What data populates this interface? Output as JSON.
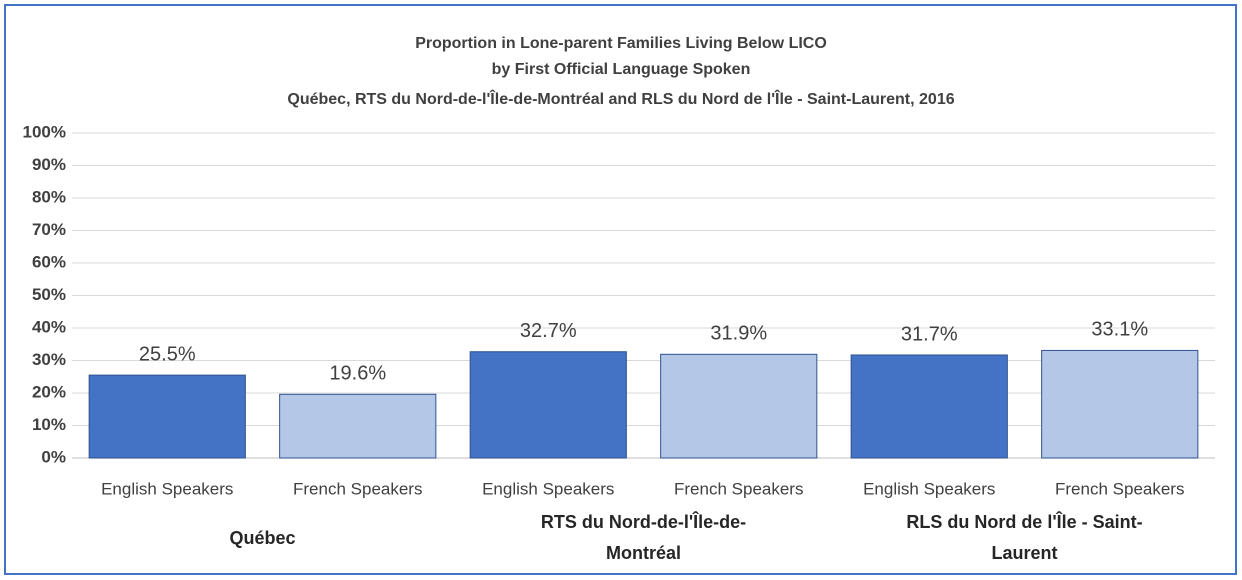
{
  "chart_data": {
    "type": "bar",
    "title": [
      "Proportion in Lone-parent Families Living Below LICO",
      "by First Official Language Spoken",
      "Québec, RTS du Nord-de-l'Île-de-Montréal and RLS du Nord de l'Île - Saint-Laurent, 2016"
    ],
    "categories": [
      "English Speakers",
      "French Speakers",
      "English Speakers",
      "French Speakers",
      "English Speakers",
      "French Speakers"
    ],
    "groups": [
      "Québec",
      "RTS du Nord-de-l'Île-de-Montréal",
      "RLS du Nord de l'Île - Saint-Laurent"
    ],
    "values": [
      25.5,
      19.6,
      32.7,
      31.9,
      31.7,
      33.1
    ],
    "value_labels": [
      "25.5%",
      "19.6%",
      "32.7%",
      "31.9%",
      "31.7%",
      "33.1%"
    ],
    "colors": [
      "#4472c4",
      "#b4c7e7",
      "#4472c4",
      "#b4c7e7",
      "#4472c4",
      "#b4c7e7"
    ],
    "ylim": [
      0,
      100
    ],
    "yticks": [
      {
        "value": 0,
        "label": "0%"
      },
      {
        "value": 10,
        "label": "10%"
      },
      {
        "value": 20,
        "label": "20%"
      },
      {
        "value": 30,
        "label": "30%"
      },
      {
        "value": 40,
        "label": "40%"
      },
      {
        "value": 50,
        "label": "50%"
      },
      {
        "value": 60,
        "label": "60%"
      },
      {
        "value": 70,
        "label": "70%"
      },
      {
        "value": 80,
        "label": "80%"
      },
      {
        "value": 90,
        "label": "90%"
      },
      {
        "value": 100,
        "label": "100%"
      }
    ],
    "grid": true
  }
}
